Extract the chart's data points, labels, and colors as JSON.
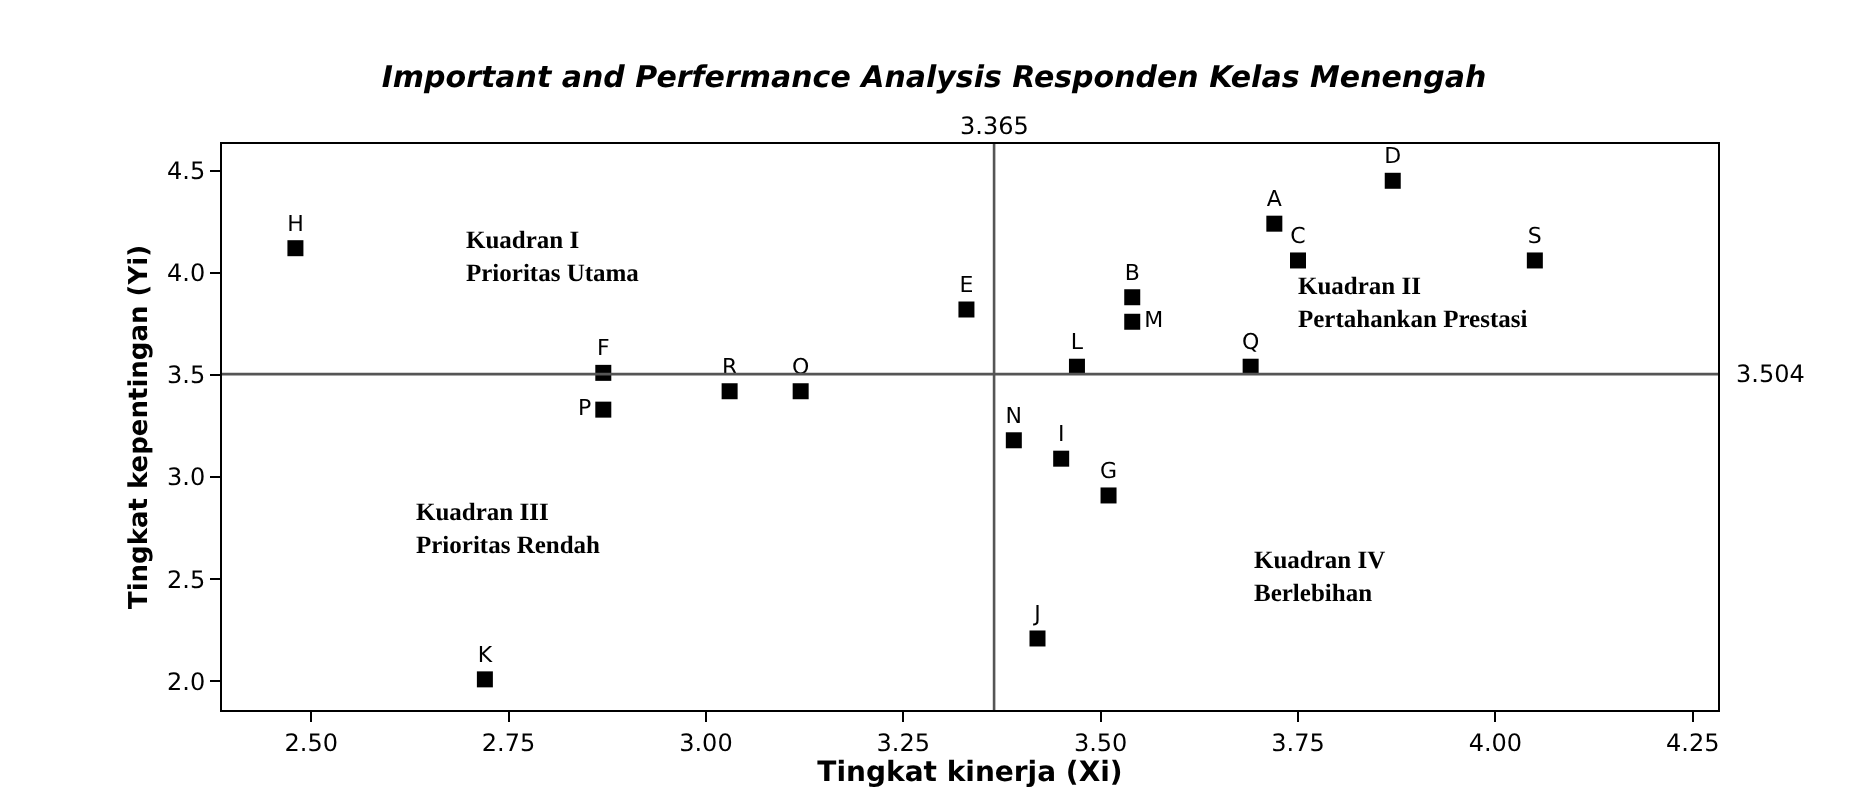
{
  "chart_data": {
    "type": "scatter",
    "title": "Important and Perfermance Analysis Responden Kelas Menengah",
    "xlabel": "Tingkat kinerja (Xi)",
    "ylabel": "Tingkat kepentingan (Yi)",
    "xlim": [
      2.387,
      4.282
    ],
    "xticks": [
      {
        "value": 2.5,
        "label": "2.50"
      },
      2.75,
      {
        "value": 3.0,
        "label": "3.00"
      },
      3.25,
      {
        "value": 3.5,
        "label": "3.50"
      },
      3.75,
      {
        "value": 4.0,
        "label": "4.00"
      },
      4.25
    ],
    "ylim": [
      1.86,
      4.63
    ],
    "yticks": [
      {
        "value": 2.0,
        "label": "2.0"
      },
      2.5,
      {
        "value": 3.0,
        "label": "3.0"
      },
      3.5,
      {
        "value": 4.0,
        "label": "4.0"
      },
      4.5
    ],
    "legend": false,
    "marker": "square",
    "series": [
      {
        "name": "A",
        "color": "#000000",
        "x": [
          3.72
        ],
        "values": [
          4.24
        ]
      },
      {
        "name": "B",
        "color": "#000000",
        "x": [
          3.54
        ],
        "values": [
          3.88
        ]
      },
      {
        "name": "C",
        "color": "#000000",
        "x": [
          3.75
        ],
        "values": [
          4.06
        ]
      },
      {
        "name": "D",
        "color": "#000000",
        "x": [
          3.87
        ],
        "values": [
          4.45
        ]
      },
      {
        "name": "E",
        "color": "#000000",
        "x": [
          3.33
        ],
        "values": [
          3.82
        ]
      },
      {
        "name": "F",
        "color": "#000000",
        "x": [
          2.87
        ],
        "values": [
          3.51
        ]
      },
      {
        "name": "G",
        "color": "#000000",
        "x": [
          3.51
        ],
        "values": [
          2.91
        ]
      },
      {
        "name": "H",
        "color": "#000000",
        "x": [
          2.48
        ],
        "values": [
          4.12
        ]
      },
      {
        "name": "I",
        "color": "#000000",
        "x": [
          3.45
        ],
        "values": [
          3.09
        ]
      },
      {
        "name": "J",
        "color": "#000000",
        "x": [
          3.42
        ],
        "values": [
          2.21
        ]
      },
      {
        "name": "K",
        "color": "#000000",
        "x": [
          2.72
        ],
        "values": [
          2.01
        ]
      },
      {
        "name": "L",
        "color": "#000000",
        "x": [
          3.47
        ],
        "values": [
          3.54
        ]
      },
      {
        "name": "M",
        "color": "#000000",
        "x": [
          3.54
        ],
        "values": [
          3.76
        ]
      },
      {
        "name": "N",
        "color": "#000000",
        "x": [
          3.39
        ],
        "values": [
          3.18
        ]
      },
      {
        "name": "O",
        "color": "#000000",
        "x": [
          3.12
        ],
        "values": [
          3.42
        ]
      },
      {
        "name": "P",
        "color": "#000000",
        "x": [
          2.87
        ],
        "values": [
          3.33
        ]
      },
      {
        "name": "Q",
        "color": "#000000",
        "x": [
          3.69
        ],
        "values": [
          3.54
        ]
      },
      {
        "name": "R",
        "color": "#000000",
        "x": [
          3.03
        ],
        "values": [
          3.42
        ]
      },
      {
        "name": "S",
        "color": "#000000",
        "x": [
          4.05
        ],
        "values": [
          4.06
        ]
      }
    ],
    "ref_lines": [
      {
        "axis": "x",
        "value": 3.365,
        "label": "3.365",
        "color": "#555555"
      },
      {
        "axis": "y",
        "value": 3.504,
        "label": "3.504",
        "color": "#555555"
      }
    ],
    "annotations": [
      "Kuadran I\nPrioritas Utama",
      "Kuadran II\nPertahankan Prestasi",
      "Kuadran III\nPrioritas Rendah",
      "Kuadran IV\nBerlebihan"
    ]
  }
}
